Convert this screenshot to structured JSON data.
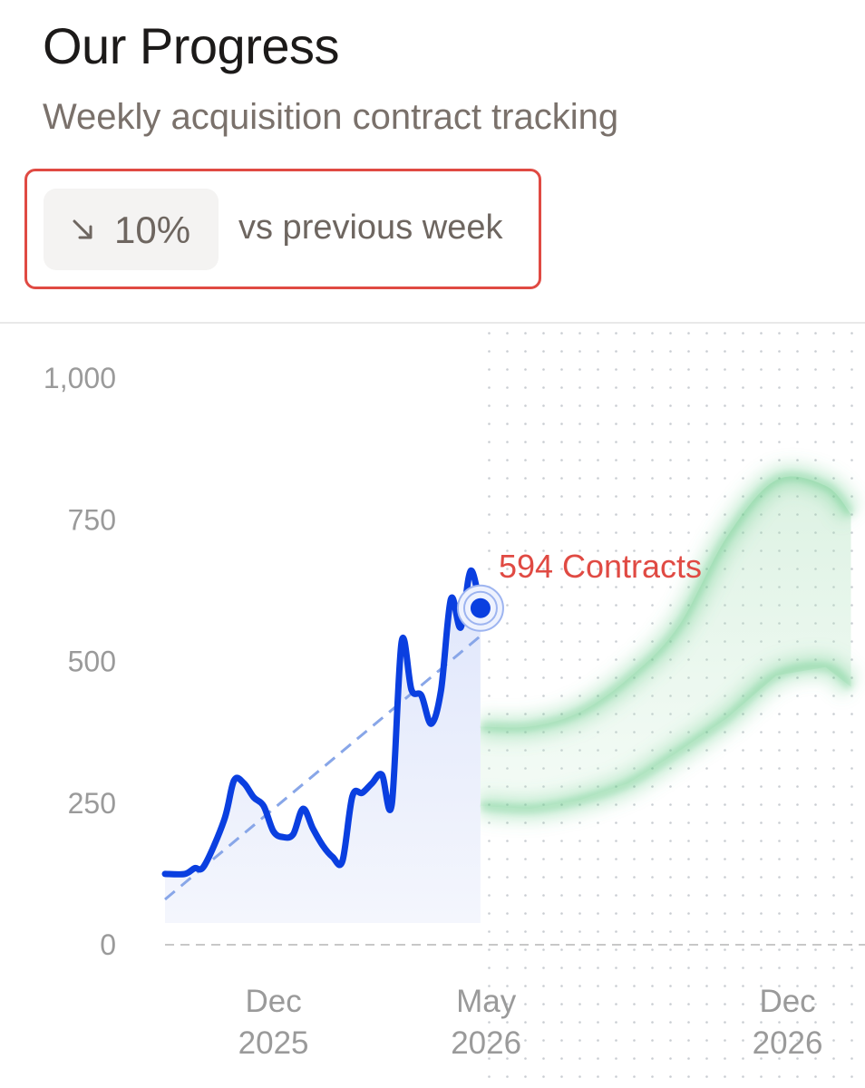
{
  "header": {
    "title": "Our Progress",
    "subtitle": "Weekly acquisition contract tracking"
  },
  "change": {
    "direction_icon": "arrow-down-right-icon",
    "value": "10%",
    "caption": "vs previous week"
  },
  "colors": {
    "actual_line": "#0a3fe0",
    "trend_line": "#88a6e8",
    "forecast_band": "#5cc77f",
    "annotation": "#e04a43",
    "highlight_border": "#e04a43"
  },
  "chart_data": {
    "type": "line",
    "yticks": [
      "1,000",
      "750",
      "500",
      "250",
      "0"
    ],
    "ylim": [
      0,
      1000
    ],
    "xticks": [
      {
        "month": "Dec",
        "year": "2025"
      },
      {
        "month": "May",
        "year": "2026"
      },
      {
        "month": "Dec",
        "year": "2026"
      }
    ],
    "grid": "dotted in forecast region",
    "series": [
      {
        "role": "actual",
        "points": [
          [
            "2025-09-15",
            125
          ],
          [
            "2025-09-29",
            125
          ],
          [
            "2025-10-06",
            135
          ],
          [
            "2025-10-13",
            140
          ],
          [
            "2025-10-27",
            220
          ],
          [
            "2025-11-03",
            290
          ],
          [
            "2025-11-10",
            285
          ],
          [
            "2025-11-17",
            260
          ],
          [
            "2025-11-24",
            245
          ],
          [
            "2025-12-01",
            200
          ],
          [
            "2025-12-08",
            190
          ],
          [
            "2025-12-15",
            195
          ],
          [
            "2025-12-22",
            240
          ],
          [
            "2025-12-29",
            205
          ],
          [
            "2026-01-05",
            175
          ],
          [
            "2026-01-12",
            155
          ],
          [
            "2026-01-19",
            148
          ],
          [
            "2026-01-26",
            262
          ],
          [
            "2026-02-02",
            268
          ],
          [
            "2026-02-09",
            285
          ],
          [
            "2026-02-16",
            300
          ],
          [
            "2026-02-23",
            248
          ],
          [
            "2026-03-02",
            535
          ],
          [
            "2026-03-09",
            450
          ],
          [
            "2026-03-16",
            440
          ],
          [
            "2026-03-23",
            390
          ],
          [
            "2026-03-30",
            450
          ],
          [
            "2026-04-06",
            610
          ],
          [
            "2026-04-13",
            560
          ],
          [
            "2026-04-20",
            660
          ],
          [
            "2026-04-27",
            594
          ]
        ]
      },
      {
        "role": "trend",
        "points": [
          [
            "2025-09-15",
            80
          ],
          [
            "2026-04-27",
            545
          ]
        ]
      },
      {
        "role": "forecast-upper",
        "points": [
          [
            "2026-03-02",
            375
          ],
          [
            "2026-04-27",
            385
          ],
          [
            "2026-06-01",
            385
          ],
          [
            "2026-07-06",
            410
          ],
          [
            "2026-08-10",
            470
          ],
          [
            "2026-09-14",
            560
          ],
          [
            "2026-10-19",
            720
          ],
          [
            "2026-11-23",
            820
          ],
          [
            "2026-12-28",
            810
          ],
          [
            "2027-01-15",
            760
          ]
        ]
      },
      {
        "role": "forecast-lower",
        "points": [
          [
            "2026-03-02",
            240
          ],
          [
            "2026-04-27",
            245
          ],
          [
            "2026-06-01",
            240
          ],
          [
            "2026-07-06",
            255
          ],
          [
            "2026-08-10",
            285
          ],
          [
            "2026-09-14",
            340
          ],
          [
            "2026-10-19",
            400
          ],
          [
            "2026-11-23",
            475
          ],
          [
            "2026-12-28",
            490
          ],
          [
            "2027-01-15",
            455
          ]
        ]
      }
    ],
    "annotation": {
      "date": "2026-04-27",
      "value": 594,
      "label": "594 Contracts"
    }
  }
}
